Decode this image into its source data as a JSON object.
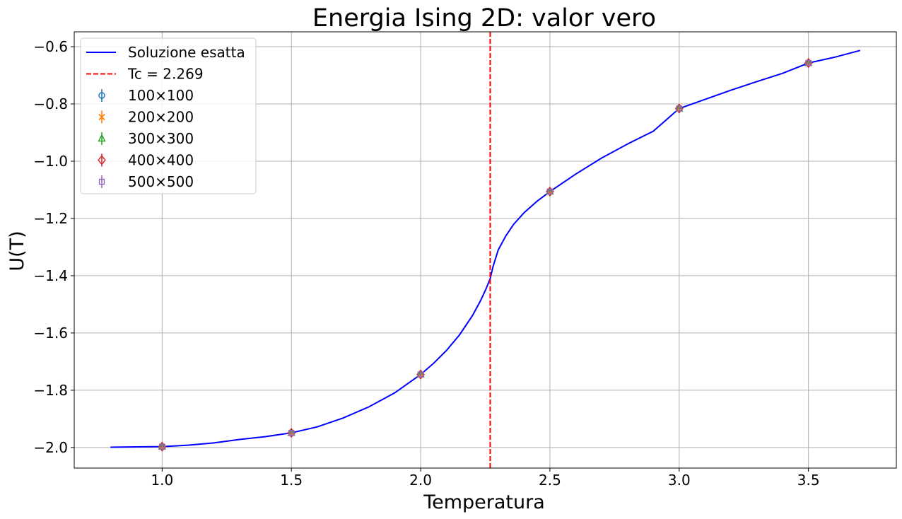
{
  "chart_data": {
    "type": "line",
    "title": "Energia Ising 2D: valor vero",
    "xlabel": "Temperatura",
    "ylabel": "U(T)",
    "xlim": [
      0.66,
      3.84
    ],
    "ylim": [
      -2.072,
      -0.548
    ],
    "xticks": [
      1.0,
      1.5,
      2.0,
      2.5,
      3.0,
      3.5
    ],
    "xtick_labels": [
      "1.0",
      "1.5",
      "2.0",
      "2.5",
      "3.0",
      "3.5"
    ],
    "yticks": [
      -2.0,
      -1.8,
      -1.6,
      -1.4,
      -1.2,
      -1.0,
      -0.8,
      -0.6
    ],
    "ytick_labels": [
      "−2.0",
      "−1.8",
      "−1.6",
      "−1.4",
      "−1.2",
      "−1.0",
      "−0.8",
      "−0.6"
    ],
    "grid": true,
    "legend_position": "top-left",
    "exact_solution": {
      "name": "Soluzione esatta",
      "color": "#0000ff",
      "x": [
        0.8,
        0.9,
        1.0,
        1.1,
        1.2,
        1.3,
        1.4,
        1.5,
        1.6,
        1.7,
        1.8,
        1.9,
        2.0,
        2.05,
        2.1,
        2.15,
        2.2,
        2.23,
        2.25,
        2.26,
        2.269,
        2.28,
        2.3,
        2.33,
        2.36,
        2.4,
        2.45,
        2.5,
        2.6,
        2.7,
        2.8,
        2.9,
        3.0,
        3.1,
        3.2,
        3.3,
        3.4,
        3.5,
        3.6,
        3.7
      ],
      "y": [
        -1.999,
        -1.998,
        -1.997,
        -1.992,
        -1.984,
        -1.972,
        -1.962,
        -1.949,
        -1.928,
        -1.897,
        -1.858,
        -1.809,
        -1.745,
        -1.706,
        -1.661,
        -1.607,
        -1.54,
        -1.49,
        -1.452,
        -1.43,
        -1.41,
        -1.368,
        -1.31,
        -1.26,
        -1.22,
        -1.18,
        -1.14,
        -1.106,
        -1.045,
        -0.989,
        -0.94,
        -0.895,
        -0.816,
        -0.784,
        -0.752,
        -0.722,
        -0.693,
        -0.657,
        -0.637,
        -0.613
      ]
    },
    "critical_line": {
      "name": "Tc = 2.269",
      "x": 2.269,
      "color": "#ff0000",
      "style": "dashed"
    },
    "series": [
      {
        "name": "100×100",
        "marker": "circle",
        "color": "#1f77b4",
        "x": [
          1.0,
          1.5,
          2.0,
          2.5,
          3.0,
          3.5
        ],
        "y": [
          -1.997,
          -1.949,
          -1.745,
          -1.106,
          -0.816,
          -0.657
        ]
      },
      {
        "name": "200×200",
        "marker": "x",
        "color": "#ff7f0e",
        "x": [
          1.0,
          1.5,
          2.0,
          2.5,
          3.0,
          3.5
        ],
        "y": [
          -1.997,
          -1.949,
          -1.745,
          -1.106,
          -0.816,
          -0.657
        ]
      },
      {
        "name": "300×300",
        "marker": "triangle",
        "color": "#2ca02c",
        "x": [
          1.0,
          1.5,
          2.0,
          2.5,
          3.0,
          3.5
        ],
        "y": [
          -1.997,
          -1.949,
          -1.745,
          -1.106,
          -0.816,
          -0.657
        ]
      },
      {
        "name": "400×400",
        "marker": "diamond",
        "color": "#d62728",
        "x": [
          1.0,
          1.5,
          2.0,
          2.5,
          3.0,
          3.5
        ],
        "y": [
          -1.997,
          -1.949,
          -1.745,
          -1.106,
          -0.816,
          -0.657
        ]
      },
      {
        "name": "500×500",
        "marker": "square",
        "color": "#9467bd",
        "x": [
          1.0,
          1.5,
          2.0,
          2.5,
          3.0,
          3.5
        ],
        "y": [
          -1.997,
          -1.949,
          -1.745,
          -1.106,
          -0.816,
          -0.657
        ]
      }
    ]
  }
}
